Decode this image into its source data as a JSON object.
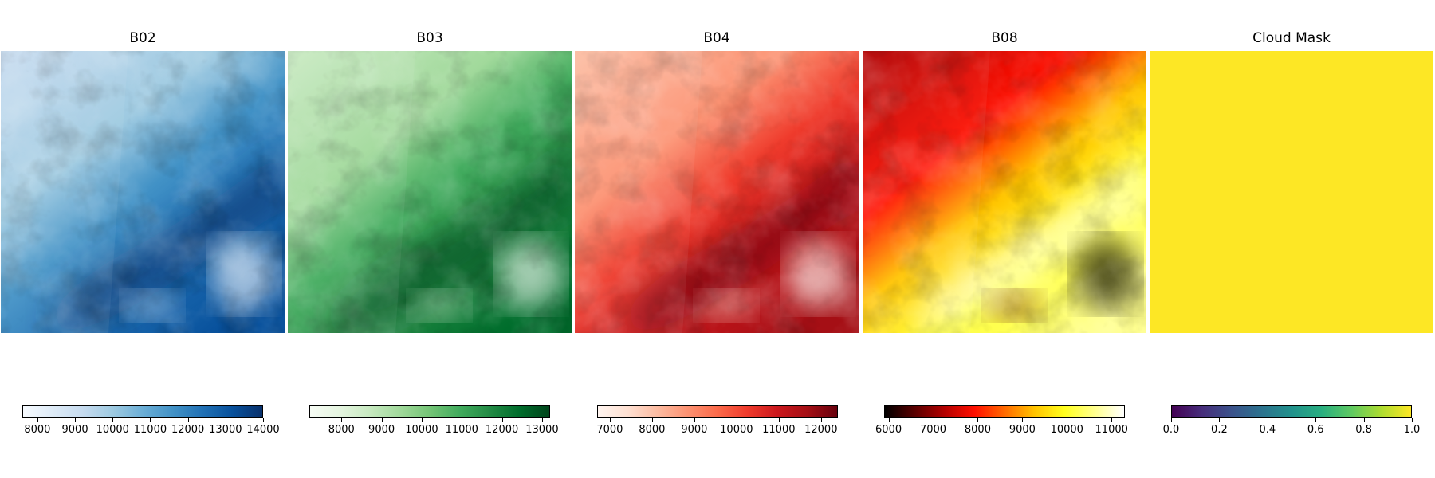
{
  "chart_data": [
    {
      "type": "heatmap",
      "title": "B02",
      "colormap": "Blues",
      "gradient": [
        "#f7fbff",
        "#deebf7",
        "#c6dbef",
        "#9ecae1",
        "#6baed6",
        "#4292c6",
        "#2171b5",
        "#08519c",
        "#08306b"
      ],
      "vmin": 7600,
      "vmax": 14000,
      "ticks": [
        8000,
        9000,
        10000,
        11000,
        12000,
        13000,
        14000
      ]
    },
    {
      "type": "heatmap",
      "title": "B03",
      "colormap": "Greens",
      "gradient": [
        "#f7fcf5",
        "#e5f5e0",
        "#c7e9c0",
        "#a1d99b",
        "#74c476",
        "#41ab5d",
        "#238b45",
        "#006d2c",
        "#00441b"
      ],
      "vmin": 7200,
      "vmax": 13200,
      "ticks": [
        8000,
        9000,
        10000,
        11000,
        12000,
        13000
      ]
    },
    {
      "type": "heatmap",
      "title": "B04",
      "colormap": "Reds",
      "gradient": [
        "#fff5f0",
        "#fee0d2",
        "#fcbba1",
        "#fc9272",
        "#fb6a4a",
        "#ef3b2c",
        "#cb181d",
        "#a50f15",
        "#67000d"
      ],
      "vmin": 6700,
      "vmax": 12400,
      "ticks": [
        7000,
        8000,
        9000,
        10000,
        11000,
        12000
      ]
    },
    {
      "type": "heatmap",
      "title": "B08",
      "colormap": "hot",
      "gradient": [
        "#000000",
        "#5a0000",
        "#b40000",
        "#ff0f00",
        "#ff6900",
        "#ffc300",
        "#ffff1e",
        "#ffff8c",
        "#ffffff"
      ],
      "vmin": 5900,
      "vmax": 11300,
      "ticks": [
        6000,
        7000,
        8000,
        9000,
        10000,
        11000
      ]
    },
    {
      "type": "heatmap",
      "title": "Cloud Mask",
      "colormap": "viridis",
      "gradient": [
        "#440154",
        "#472d7b",
        "#3b528b",
        "#2c728e",
        "#21918c",
        "#28ae80",
        "#5ec962",
        "#addc30",
        "#fde725"
      ],
      "vmin": 0.0,
      "vmax": 1.0,
      "ticks": [
        0.0,
        0.2,
        0.4,
        0.6,
        0.8,
        1.0
      ],
      "tick_labels": [
        "0.0",
        "0.2",
        "0.4",
        "0.6",
        "0.8",
        "1.0"
      ],
      "uniform_value": 1.0
    }
  ]
}
